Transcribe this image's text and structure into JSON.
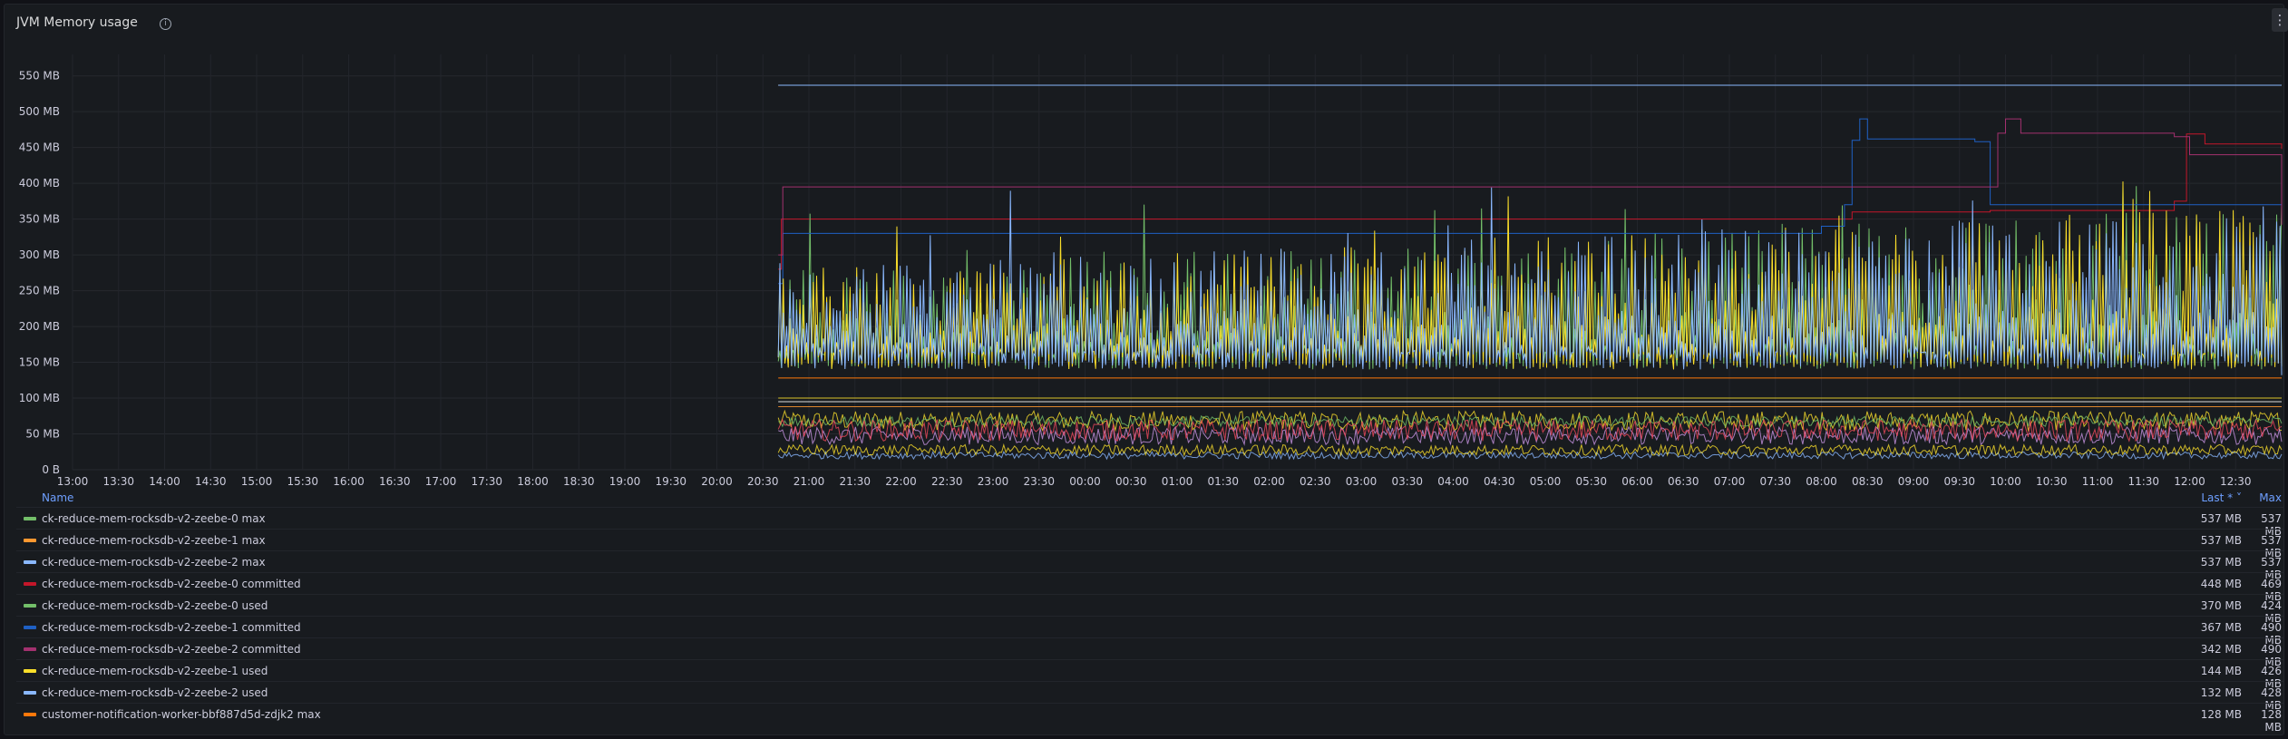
{
  "panel": {
    "title": "JVM Memory usage",
    "info_icon": "info-circle-icon",
    "menu_icon": "vertical-ellipsis-icon"
  },
  "chart_data": {
    "type": "line",
    "ylim": [
      0,
      580
    ],
    "yticks": [
      0,
      50,
      100,
      150,
      200,
      250,
      300,
      350,
      400,
      450,
      500,
      550
    ],
    "ytick_labels": [
      "0 B",
      "50 MB",
      "100 MB",
      "150 MB",
      "200 MB",
      "250 MB",
      "300 MB",
      "350 MB",
      "400 MB",
      "450 MB",
      "500 MB",
      "550 MB"
    ],
    "x_start": "13:00",
    "x_end": "13:00",
    "xticks": [
      "13:00",
      "13:30",
      "14:00",
      "14:30",
      "15:00",
      "15:30",
      "16:00",
      "16:30",
      "17:00",
      "17:30",
      "18:00",
      "18:30",
      "19:00",
      "19:30",
      "20:00",
      "20:30",
      "21:00",
      "21:30",
      "22:00",
      "22:30",
      "23:00",
      "23:30",
      "00:00",
      "00:30",
      "01:00",
      "01:30",
      "02:00",
      "02:30",
      "03:00",
      "03:30",
      "04:00",
      "04:30",
      "05:00",
      "05:30",
      "06:00",
      "06:30",
      "07:00",
      "07:30",
      "08:00",
      "08:30",
      "09:00",
      "09:30",
      "10:00",
      "10:30",
      "11:00",
      "11:30",
      "12:00",
      "12:30"
    ],
    "data_start": "20:40",
    "data_end": "13:00",
    "grid": true,
    "legend_placement": "bottom",
    "series": [
      {
        "name": "ck-reduce-mem-rocksdb-v2-zeebe-0 max",
        "color": "#73bf69",
        "last": "537 MB",
        "max": "537 MB",
        "points": [
          [
            "20:40",
            537
          ],
          [
            "13:00",
            537
          ]
        ]
      },
      {
        "name": "ck-reduce-mem-rocksdb-v2-zeebe-1 max",
        "color": "#ff9830",
        "last": "537 MB",
        "max": "537 MB",
        "points": [
          [
            "20:40",
            537
          ],
          [
            "13:00",
            537
          ]
        ]
      },
      {
        "name": "ck-reduce-mem-rocksdb-v2-zeebe-2 max",
        "color": "#8ab8ff",
        "last": "537 MB",
        "max": "537 MB",
        "points": [
          [
            "20:40",
            537
          ],
          [
            "13:00",
            537
          ]
        ]
      },
      {
        "name": "ck-reduce-mem-rocksdb-v2-zeebe-0 committed",
        "color": "#c4162a",
        "last": "448 MB",
        "max": "469 MB",
        "points": [
          [
            "20:40",
            280
          ],
          [
            "20:42",
            350
          ],
          [
            "03:00",
            350
          ],
          [
            "08:20",
            360
          ],
          [
            "09:50",
            362
          ],
          [
            "11:50",
            375
          ],
          [
            "11:58",
            469
          ],
          [
            "12:10",
            455
          ],
          [
            "13:00",
            448
          ]
        ]
      },
      {
        "name": "ck-reduce-mem-rocksdb-v2-zeebe-0 used",
        "color": "#73bf69",
        "last": "370 MB",
        "max": "424 MB"
      },
      {
        "name": "ck-reduce-mem-rocksdb-v2-zeebe-1 committed",
        "color": "#1f60c4",
        "last": "367 MB",
        "max": "490 MB",
        "points": [
          [
            "20:40",
            260
          ],
          [
            "20:43",
            330
          ],
          [
            "08:00",
            340
          ],
          [
            "08:15",
            370
          ],
          [
            "08:20",
            460
          ],
          [
            "08:25",
            490
          ],
          [
            "08:30",
            462
          ],
          [
            "09:40",
            458
          ],
          [
            "09:50",
            370
          ],
          [
            "13:00",
            367
          ]
        ]
      },
      {
        "name": "ck-reduce-mem-rocksdb-v2-zeebe-2 committed",
        "color": "#a3316f",
        "last": "342 MB",
        "max": "490 MB",
        "points": [
          [
            "20:40",
            300
          ],
          [
            "20:43",
            395
          ],
          [
            "09:45",
            395
          ],
          [
            "09:55",
            470
          ],
          [
            "10:00",
            490
          ],
          [
            "10:10",
            470
          ],
          [
            "11:50",
            465
          ],
          [
            "12:00",
            440
          ],
          [
            "13:00",
            342
          ]
        ]
      },
      {
        "name": "ck-reduce-mem-rocksdb-v2-zeebe-1 used",
        "color": "#fade2a",
        "last": "144 MB",
        "max": "426 MB"
      },
      {
        "name": "ck-reduce-mem-rocksdb-v2-zeebe-2 used",
        "color": "#8ab8ff",
        "last": "132 MB",
        "max": "428 MB"
      },
      {
        "name": "customer-notification-worker-bbf887d5d-zdjk2 max",
        "color": "#ff780a",
        "last": "128 MB",
        "max": "128 MB",
        "points": [
          [
            "20:40",
            128
          ],
          [
            "13:00",
            128
          ]
        ]
      }
    ]
  },
  "legend": {
    "header_name": "Name",
    "header_last": "Last * ˅",
    "header_max": "Max",
    "rows": [
      {
        "name": "ck-reduce-mem-rocksdb-v2-zeebe-0 max",
        "color": "#73bf69",
        "last": "537 MB",
        "max": "537 MB"
      },
      {
        "name": "ck-reduce-mem-rocksdb-v2-zeebe-1 max",
        "color": "#ff9830",
        "last": "537 MB",
        "max": "537 MB"
      },
      {
        "name": "ck-reduce-mem-rocksdb-v2-zeebe-2 max",
        "color": "#8ab8ff",
        "last": "537 MB",
        "max": "537 MB"
      },
      {
        "name": "ck-reduce-mem-rocksdb-v2-zeebe-0 committed",
        "color": "#c4162a",
        "last": "448 MB",
        "max": "469 MB"
      },
      {
        "name": "ck-reduce-mem-rocksdb-v2-zeebe-0 used",
        "color": "#73bf69",
        "last": "370 MB",
        "max": "424 MB"
      },
      {
        "name": "ck-reduce-mem-rocksdb-v2-zeebe-1 committed",
        "color": "#1f60c4",
        "last": "367 MB",
        "max": "490 MB"
      },
      {
        "name": "ck-reduce-mem-rocksdb-v2-zeebe-2 committed",
        "color": "#a3316f",
        "last": "342 MB",
        "max": "490 MB"
      },
      {
        "name": "ck-reduce-mem-rocksdb-v2-zeebe-1 used",
        "color": "#fade2a",
        "last": "144 MB",
        "max": "426 MB"
      },
      {
        "name": "ck-reduce-mem-rocksdb-v2-zeebe-2 used",
        "color": "#8ab8ff",
        "last": "132 MB",
        "max": "428 MB"
      },
      {
        "name": "customer-notification-worker-bbf887d5d-zdjk2 max",
        "color": "#ff780a",
        "last": "128 MB",
        "max": "128 MB"
      }
    ]
  }
}
